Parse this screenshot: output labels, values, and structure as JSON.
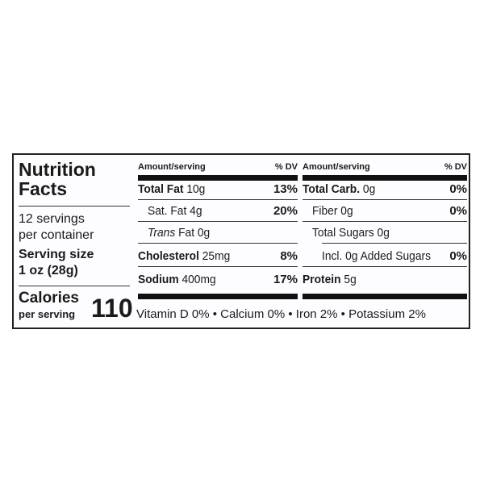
{
  "title_line1": "Nutrition",
  "title_line2": "Facts",
  "servings_line1": "12 servings",
  "servings_line2": "per container",
  "serving_size_label": "Serving size",
  "serving_size_value": "1 oz (28g)",
  "calories_label": "Calories",
  "calories_sub": "per serving",
  "calories_value": "110",
  "header_amount": "Amount/serving",
  "header_dv": "% DV",
  "left_rows": [
    {
      "name": "Total Fat",
      "amount": "10g",
      "dv": "13%"
    },
    {
      "name": "Sat. Fat",
      "amount": "4g",
      "dv": "20%"
    },
    {
      "name": "Trans",
      "amount": "Fat 0g",
      "dv": ""
    },
    {
      "name": "Cholesterol",
      "amount": "25mg",
      "dv": "8%"
    },
    {
      "name": "Sodium",
      "amount": "400mg",
      "dv": "17%"
    }
  ],
  "right_rows": [
    {
      "name": "Total Carb.",
      "amount": "0g",
      "dv": "0%"
    },
    {
      "name": "Fiber",
      "amount": "0g",
      "dv": "0%"
    },
    {
      "name": "Total Sugars",
      "amount": "0g",
      "dv": ""
    },
    {
      "name": "Incl. 0g Added Sugars",
      "amount": "",
      "dv": "0%"
    },
    {
      "name": "Protein",
      "amount": "5g",
      "dv": ""
    }
  ],
  "vitamins": "Vitamin D 0% • Calcium 0% • Iron 2% • Potassium 2%"
}
